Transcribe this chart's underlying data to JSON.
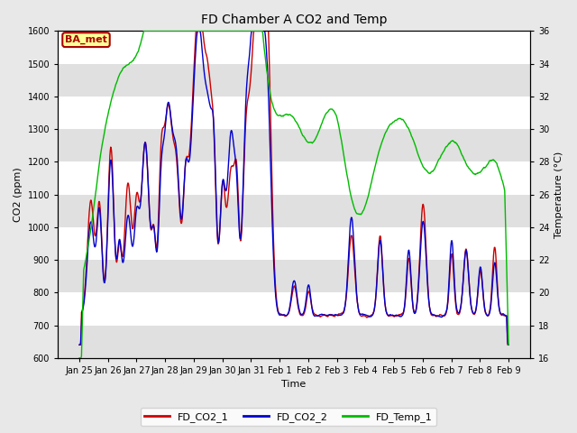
{
  "title": "FD Chamber A CO2 and Temp",
  "xlabel": "Time",
  "ylabel_left": "CO2 (ppm)",
  "ylabel_right": "Temperature (°C)",
  "ylim_left": [
    600,
    1600
  ],
  "ylim_right": [
    16,
    36
  ],
  "yticks_left": [
    600,
    700,
    800,
    900,
    1000,
    1100,
    1200,
    1300,
    1400,
    1500,
    1600
  ],
  "yticks_right": [
    16,
    18,
    20,
    22,
    24,
    26,
    28,
    30,
    32,
    34,
    36
  ],
  "co2_color1": "#cc0000",
  "co2_color2": "#0000cc",
  "temp_color": "#00bb00",
  "annotation_text": "BA_met",
  "annotation_color": "#aa0000",
  "annotation_bg": "#ffff99",
  "bg_color": "#e8e8e8",
  "plot_bg": "#ffffff",
  "band_color": "#e0e0e0",
  "grid_color": "#cccccc",
  "line_width": 1.0,
  "legend_labels": [
    "FD_CO2_1",
    "FD_CO2_2",
    "FD_Temp_1"
  ],
  "tick_labels": [
    "Jan 25",
    "Jan 26",
    "Jan 27",
    "Jan 28",
    "Jan 29",
    "Jan 30",
    "Jan 31",
    "Feb 1",
    "Feb 2",
    "Feb 3",
    "Feb 4",
    "Feb 5",
    "Feb 6",
    "Feb 7",
    "Feb 8",
    "Feb 9"
  ],
  "n_points": 1000,
  "seed": 42
}
